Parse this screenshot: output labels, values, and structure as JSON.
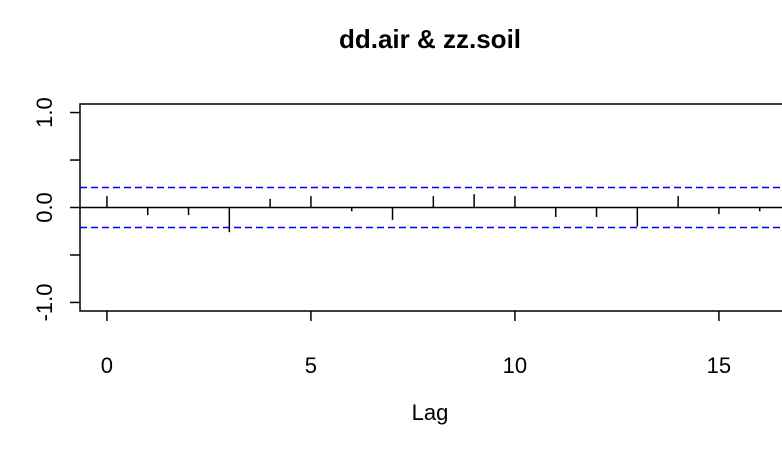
{
  "chart_data": {
    "type": "acf",
    "title": "dd.air & zz.soil",
    "x_label": "Lag",
    "x": [
      0,
      1,
      2,
      3,
      4,
      5,
      6,
      7,
      8,
      9,
      10,
      11,
      12,
      13,
      14,
      15,
      16
    ],
    "values": [
      0.12,
      -0.08,
      -0.08,
      -0.26,
      0.09,
      0.12,
      -0.04,
      -0.13,
      0.12,
      0.14,
      0.12,
      -0.1,
      -0.1,
      -0.2,
      0.12,
      -0.07,
      -0.04
    ],
    "color": "#000000",
    "conf_limits": [
      0.21,
      -0.21
    ],
    "conf_color": "#0000ff",
    "xlim": [
      -0.66,
      17.2
    ],
    "ylim": [
      -1.09,
      1.09
    ],
    "xticks": [
      0,
      5,
      10,
      15
    ],
    "yticks": [
      {
        "value": -1,
        "label": "-1.0"
      },
      {
        "value": 0,
        "label": "0.0"
      },
      {
        "value": 1,
        "label": "1.0"
      }
    ],
    "yticks_minor": [
      -0.5,
      0.5
    ]
  }
}
